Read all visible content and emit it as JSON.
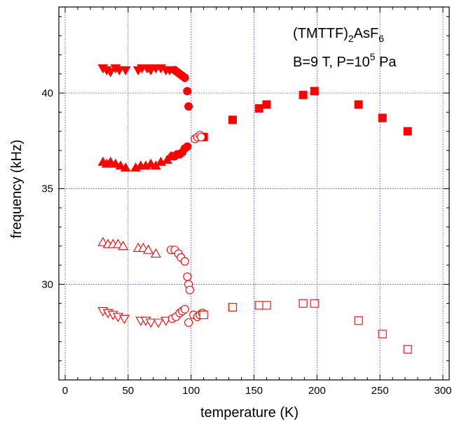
{
  "chart_data": {
    "type": "scatter",
    "title": "",
    "xlabel": "temperature (K)",
    "ylabel": "frequency (kHz)",
    "xlim": [
      -5,
      305
    ],
    "ylim": [
      25.0,
      44.5
    ],
    "xticks": [
      0,
      50,
      100,
      150,
      200,
      250,
      300
    ],
    "yticks": [
      30,
      35,
      40
    ],
    "grid": true,
    "annotations": {
      "compound_prefix": "(TMTTF)",
      "compound_sub1": "2",
      "compound_mid": "AsF",
      "compound_sub2": "6",
      "conditions_prefix": "B=9 T,  P=10",
      "conditions_sup": "5",
      "conditions_suffix": " Pa"
    },
    "colors": {
      "series": "#ff0000",
      "grid": "#3333cc"
    },
    "series": [
      {
        "marker": "triangle-down",
        "filled": true,
        "x": [
          30,
          33,
          36,
          40,
          43,
          48,
          58,
          61,
          65,
          68,
          72,
          76,
          80,
          83
        ],
        "y": [
          41.3,
          41.2,
          41.1,
          41.3,
          41.2,
          41.2,
          41.2,
          41.3,
          41.3,
          41.2,
          41.3,
          41.3,
          41.2,
          41.2
        ]
      },
      {
        "marker": "circle",
        "filled": true,
        "x": [
          87,
          89,
          91,
          93,
          95,
          97,
          98,
          97,
          95,
          93,
          91,
          89,
          87,
          85
        ],
        "y": [
          41.2,
          41.1,
          41.0,
          40.9,
          40.8,
          40.1,
          39.3,
          37.2,
          37.1,
          36.9,
          36.8,
          36.8,
          36.7,
          36.7
        ]
      },
      {
        "marker": "triangle-up",
        "filled": true,
        "x": [
          30,
          33,
          36,
          40,
          44,
          48,
          56,
          60,
          64,
          68,
          72,
          76,
          81,
          84
        ],
        "y": [
          36.4,
          36.3,
          36.4,
          36.3,
          36.2,
          36.1,
          36.1,
          36.2,
          36.2,
          36.3,
          36.2,
          36.4,
          36.5,
          36.7
        ]
      },
      {
        "marker": "square",
        "filled": true,
        "x": [
          110,
          133,
          154,
          160,
          189,
          198,
          233,
          252,
          272
        ],
        "y": [
          37.7,
          38.6,
          39.2,
          39.4,
          39.9,
          40.1,
          39.4,
          38.7,
          38.0
        ]
      },
      {
        "marker": "circle",
        "filled": false,
        "x": [
          103,
          105,
          107,
          108
        ],
        "y": [
          37.6,
          37.7,
          37.8,
          37.7
        ]
      },
      {
        "marker": "triangle-up",
        "filled": false,
        "x": [
          30,
          34,
          38,
          42,
          46,
          58,
          62,
          66,
          72
        ],
        "y": [
          32.2,
          32.1,
          32.1,
          32.1,
          32.0,
          31.9,
          31.9,
          31.8,
          31.6
        ]
      },
      {
        "marker": "circle",
        "filled": false,
        "x": [
          84,
          87,
          90,
          92,
          95,
          97,
          98,
          99
        ],
        "y": [
          31.8,
          31.8,
          31.6,
          31.4,
          31.2,
          30.4,
          30.0,
          29.7
        ]
      },
      {
        "marker": "triangle-down",
        "filled": false,
        "x": [
          30,
          34,
          38,
          42,
          47,
          60,
          64,
          68,
          74,
          80
        ],
        "y": [
          28.6,
          28.5,
          28.4,
          28.3,
          28.2,
          28.1,
          28.1,
          28.0,
          28.0,
          28.1
        ]
      },
      {
        "marker": "circle",
        "filled": false,
        "x": [
          85,
          88,
          91,
          93,
          95,
          98,
          102,
          105,
          107,
          109
        ],
        "y": [
          28.2,
          28.3,
          28.5,
          28.6,
          28.7,
          28.0,
          28.4,
          28.3,
          28.4,
          28.5
        ]
      },
      {
        "marker": "square",
        "filled": false,
        "x": [
          110,
          133,
          154,
          160,
          189,
          198,
          233,
          252,
          272
        ],
        "y": [
          28.4,
          28.8,
          28.9,
          28.9,
          29.0,
          29.0,
          28.1,
          27.4,
          26.6
        ]
      }
    ]
  }
}
